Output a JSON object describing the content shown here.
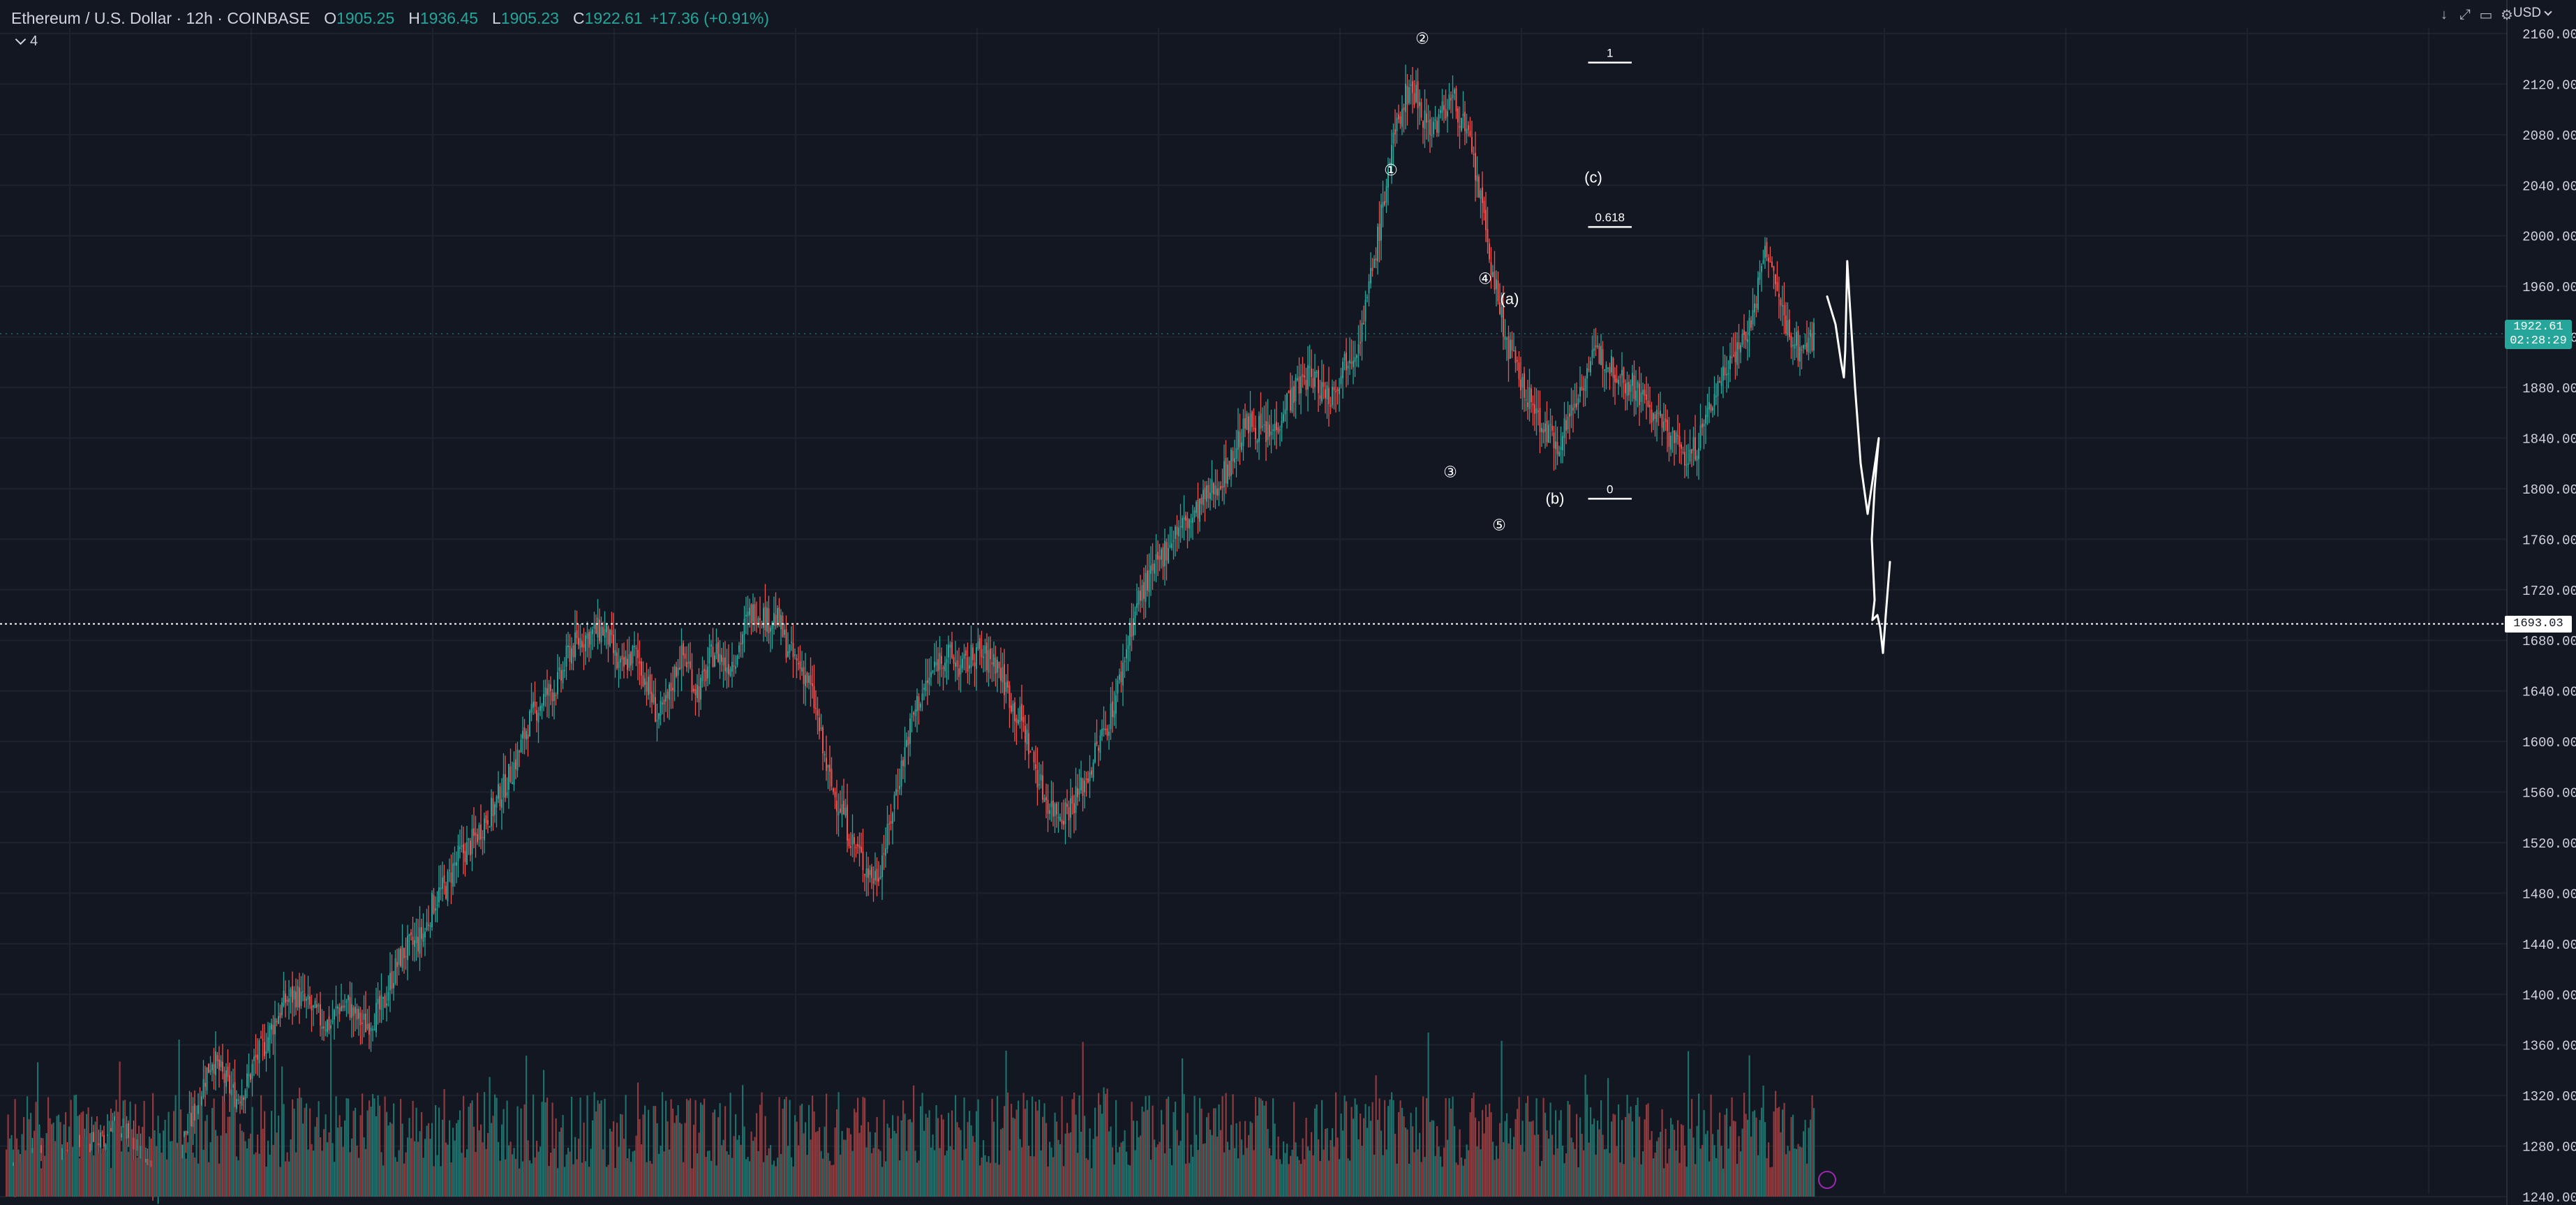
{
  "header": {
    "symbol": "Ethereum / U.S. Dollar · 12h · COINBASE",
    "open_label": "O",
    "open_value": "1905.25",
    "high_label": "H",
    "high_value": "1936.45",
    "low_label": "L",
    "low_value": "1905.23",
    "close_label": "C",
    "close_value": "1922.61",
    "change": "+17.36 (+0.91%)"
  },
  "indicator_toggle": {
    "label": "4"
  },
  "currency": "USD",
  "toolbar_icons": [
    "download-icon",
    "fullscreen-icon",
    "screenshot-icon",
    "settings-icon"
  ],
  "last_price": {
    "price": "1922.61",
    "countdown": "02:28:29"
  },
  "horizontal_level": {
    "price": 1693.03,
    "label": "1693.03"
  },
  "colors": {
    "background": "#131722",
    "up": "#26a69a",
    "down": "#ef5350",
    "volume_up": "#1f6f6a",
    "volume_down": "#8f3a3c",
    "text": "#d1d4dc",
    "grid": "#1e222d",
    "annotation": "#ffffff"
  },
  "chart_data": {
    "type": "candlestick",
    "interval": "12h",
    "title": "Ethereum / U.S. Dollar · 12h · COINBASE",
    "ylim": [
      1220,
      2170
    ],
    "y_ticks": [
      2160,
      2120,
      2080,
      2040,
      2000,
      1960,
      1920,
      1880,
      1840,
      1800,
      1760,
      1720,
      1680,
      1640,
      1600,
      1560,
      1520,
      1480,
      1440,
      1400,
      1360,
      1320,
      1280,
      1240
    ],
    "grid": true,
    "close_path": [
      [
        0,
        1260
      ],
      [
        6,
        1265
      ],
      [
        12,
        1262
      ],
      [
        18,
        1275
      ],
      [
        24,
        1270
      ],
      [
        30,
        1268
      ],
      [
        36,
        1280
      ],
      [
        40,
        1285
      ],
      [
        44,
        1275
      ],
      [
        50,
        1290
      ],
      [
        56,
        1280
      ],
      [
        60,
        1300
      ],
      [
        66,
        1295
      ],
      [
        70,
        1285
      ],
      [
        76,
        1275
      ],
      [
        80,
        1268
      ],
      [
        84,
        1262
      ],
      [
        90,
        1264
      ],
      [
        96,
        1270
      ],
      [
        100,
        1280
      ],
      [
        106,
        1300
      ],
      [
        110,
        1315
      ],
      [
        114,
        1335
      ],
      [
        118,
        1350
      ],
      [
        122,
        1340
      ],
      [
        128,
        1325
      ],
      [
        132,
        1318
      ],
      [
        138,
        1330
      ],
      [
        142,
        1346
      ],
      [
        148,
        1360
      ],
      [
        154,
        1380
      ],
      [
        160,
        1395
      ],
      [
        166,
        1400
      ],
      [
        172,
        1392
      ],
      [
        180,
        1380
      ],
      [
        186,
        1376
      ],
      [
        190,
        1390
      ],
      [
        196,
        1392
      ],
      [
        200,
        1382
      ],
      [
        206,
        1376
      ],
      [
        210,
        1382
      ],
      [
        216,
        1390
      ],
      [
        220,
        1410
      ],
      [
        226,
        1430
      ],
      [
        230,
        1436
      ],
      [
        236,
        1442
      ],
      [
        240,
        1450
      ],
      [
        244,
        1470
      ],
      [
        248,
        1480
      ],
      [
        252,
        1485
      ],
      [
        256,
        1500
      ],
      [
        260,
        1510
      ],
      [
        264,
        1515
      ],
      [
        268,
        1522
      ],
      [
        272,
        1532
      ],
      [
        276,
        1542
      ],
      [
        280,
        1548
      ],
      [
        282,
        1556
      ],
      [
        286,
        1566
      ],
      [
        290,
        1578
      ],
      [
        294,
        1592
      ],
      [
        298,
        1610
      ],
      [
        302,
        1622
      ],
      [
        306,
        1630
      ],
      [
        310,
        1638
      ],
      [
        314,
        1642
      ],
      [
        318,
        1650
      ],
      [
        320,
        1660
      ],
      [
        322,
        1670
      ],
      [
        326,
        1676
      ],
      [
        330,
        1682
      ],
      [
        334,
        1684
      ],
      [
        338,
        1687
      ],
      [
        342,
        1688
      ],
      [
        345,
        1682
      ],
      [
        348,
        1670
      ],
      [
        350,
        1660
      ],
      [
        353,
        1656
      ],
      [
        356,
        1664
      ],
      [
        360,
        1670
      ],
      [
        363,
        1662
      ],
      [
        366,
        1650
      ],
      [
        370,
        1634
      ],
      [
        373,
        1620
      ],
      [
        376,
        1622
      ],
      [
        379,
        1632
      ],
      [
        382,
        1648
      ],
      [
        385,
        1664
      ],
      [
        388,
        1668
      ],
      [
        391,
        1660
      ],
      [
        394,
        1645
      ],
      [
        397,
        1640
      ],
      [
        400,
        1650
      ],
      [
        403,
        1664
      ],
      [
        406,
        1672
      ],
      [
        409,
        1668
      ],
      [
        412,
        1660
      ],
      [
        416,
        1664
      ],
      [
        420,
        1676
      ],
      [
        423,
        1690
      ],
      [
        426,
        1700
      ],
      [
        430,
        1704
      ],
      [
        433,
        1702
      ],
      [
        436,
        1696
      ],
      [
        440,
        1698
      ],
      [
        443,
        1694
      ],
      [
        446,
        1680
      ],
      [
        450,
        1668
      ],
      [
        453,
        1662
      ],
      [
        456,
        1658
      ],
      [
        460,
        1646
      ],
      [
        463,
        1630
      ],
      [
        466,
        1610
      ],
      [
        468,
        1592
      ],
      [
        471,
        1574
      ],
      [
        474,
        1560
      ],
      [
        477,
        1552
      ],
      [
        480,
        1544
      ],
      [
        482,
        1532
      ],
      [
        485,
        1520
      ],
      [
        488,
        1514
      ],
      [
        491,
        1504
      ],
      [
        494,
        1498
      ],
      [
        497,
        1492
      ],
      [
        500,
        1498
      ],
      [
        502,
        1510
      ],
      [
        505,
        1524
      ],
      [
        507,
        1540
      ],
      [
        510,
        1562
      ],
      [
        513,
        1580
      ],
      [
        516,
        1600
      ],
      [
        519,
        1616
      ],
      [
        522,
        1630
      ],
      [
        525,
        1638
      ],
      [
        528,
        1646
      ],
      [
        531,
        1656
      ],
      [
        534,
        1664
      ],
      [
        537,
        1668
      ],
      [
        540,
        1668
      ],
      [
        543,
        1664
      ],
      [
        546,
        1658
      ],
      [
        550,
        1660
      ],
      [
        553,
        1666
      ],
      [
        556,
        1672
      ],
      [
        559,
        1668
      ],
      [
        563,
        1664
      ],
      [
        566,
        1666
      ],
      [
        569,
        1658
      ],
      [
        572,
        1646
      ],
      [
        575,
        1636
      ],
      [
        578,
        1624
      ],
      [
        582,
        1616
      ],
      [
        585,
        1602
      ],
      [
        588,
        1588
      ],
      [
        591,
        1574
      ],
      [
        594,
        1560
      ],
      [
        598,
        1550
      ],
      [
        601,
        1546
      ],
      [
        605,
        1544
      ],
      [
        609,
        1548
      ],
      [
        612,
        1554
      ],
      [
        615,
        1560
      ],
      [
        620,
        1574
      ],
      [
        624,
        1590
      ],
      [
        628,
        1604
      ],
      [
        632,
        1618
      ],
      [
        636,
        1636
      ],
      [
        640,
        1660
      ],
      [
        644,
        1688
      ],
      [
        648,
        1708
      ],
      [
        652,
        1722
      ],
      [
        656,
        1730
      ],
      [
        660,
        1740
      ],
      [
        665,
        1754
      ],
      [
        670,
        1766
      ],
      [
        675,
        1772
      ],
      [
        680,
        1776
      ],
      [
        685,
        1788
      ],
      [
        690,
        1796
      ],
      [
        694,
        1804
      ],
      [
        698,
        1812
      ],
      [
        702,
        1822
      ],
      [
        706,
        1838
      ],
      [
        710,
        1848
      ],
      [
        714,
        1852
      ],
      [
        719,
        1846
      ],
      [
        724,
        1842
      ],
      [
        728,
        1850
      ],
      [
        733,
        1868
      ],
      [
        738,
        1876
      ],
      [
        742,
        1884
      ],
      [
        746,
        1890
      ],
      [
        750,
        1886
      ],
      [
        755,
        1878
      ],
      [
        759,
        1874
      ],
      [
        764,
        1890
      ],
      [
        768,
        1904
      ],
      [
        773,
        1912
      ],
      [
        777,
        1928
      ],
      [
        781,
        1958
      ],
      [
        785,
        1990
      ],
      [
        789,
        2022
      ],
      [
        792,
        2054
      ],
      [
        796,
        2080
      ],
      [
        800,
        2102
      ],
      [
        804,
        2118
      ],
      [
        808,
        2112
      ],
      [
        812,
        2096
      ],
      [
        816,
        2086
      ],
      [
        820,
        2090
      ],
      [
        824,
        2100
      ],
      [
        828,
        2110
      ],
      [
        832,
        2100
      ],
      [
        836,
        2084
      ],
      [
        840,
        2064
      ],
      [
        844,
        2036
      ],
      [
        848,
        2002
      ],
      [
        852,
        1970
      ],
      [
        856,
        1940
      ],
      [
        860,
        1916
      ],
      [
        864,
        1900
      ],
      [
        868,
        1884
      ],
      [
        872,
        1872
      ],
      [
        876,
        1862
      ],
      [
        880,
        1852
      ],
      [
        884,
        1842
      ],
      [
        888,
        1836
      ],
      [
        892,
        1844
      ],
      [
        896,
        1858
      ],
      [
        900,
        1872
      ],
      [
        904,
        1888
      ],
      [
        908,
        1900
      ],
      [
        912,
        1906
      ],
      [
        916,
        1904
      ],
      [
        920,
        1898
      ],
      [
        924,
        1892
      ],
      [
        928,
        1886
      ],
      [
        932,
        1882
      ],
      [
        936,
        1876
      ],
      [
        940,
        1868
      ],
      [
        944,
        1858
      ],
      [
        948,
        1852
      ],
      [
        952,
        1846
      ],
      [
        956,
        1838
      ],
      [
        960,
        1830
      ],
      [
        964,
        1824
      ],
      [
        968,
        1832
      ],
      [
        972,
        1846
      ],
      [
        976,
        1862
      ],
      [
        980,
        1878
      ],
      [
        984,
        1892
      ],
      [
        988,
        1904
      ],
      [
        992,
        1912
      ],
      [
        996,
        1920
      ],
      [
        1000,
        1932
      ],
      [
        1003,
        1950
      ],
      [
        1006,
        1974
      ],
      [
        1009,
        1990
      ],
      [
        1012,
        1972
      ],
      [
        1016,
        1948
      ],
      [
        1020,
        1930
      ],
      [
        1024,
        1918
      ],
      [
        1028,
        1910
      ],
      [
        1032,
        1914
      ],
      [
        1036,
        1922
      ]
    ],
    "annotations": [
      {
        "text": "②",
        "price": 2152,
        "idx": 812
      },
      {
        "text": "①",
        "price": 2048,
        "idx": 794
      },
      {
        "text": "③",
        "price": 1809,
        "idx": 828
      },
      {
        "text": "④",
        "price": 1962,
        "idx": 848
      },
      {
        "text": "⑤",
        "price": 1767,
        "idx": 856
      },
      {
        "text": "(a)",
        "price": 1946,
        "idx": 862
      },
      {
        "text": "(b)",
        "price": 1788,
        "idx": 888
      },
      {
        "text": "(c)",
        "price": 2042,
        "idx": 910
      }
    ],
    "fib_levels": [
      {
        "label": "1",
        "price": 2137
      },
      {
        "label": "0.618",
        "price": 2007
      },
      {
        "label": "0",
        "price": 1792
      }
    ],
    "projection_path": [
      [
        0,
        1952
      ],
      [
        0.3,
        1930
      ],
      [
        0.5,
        1900
      ],
      [
        0.6,
        1888
      ],
      [
        0.65,
        1910
      ],
      [
        0.7,
        1960
      ],
      [
        0.72,
        1980
      ],
      [
        0.8,
        1950
      ],
      [
        1.0,
        1880
      ],
      [
        1.2,
        1820
      ],
      [
        1.45,
        1780
      ],
      [
        1.65,
        1810
      ],
      [
        1.85,
        1840
      ],
      [
        1.7,
        1800
      ],
      [
        1.6,
        1760
      ],
      [
        1.7,
        1712
      ],
      [
        1.62,
        1696
      ],
      [
        1.8,
        1700
      ],
      [
        1.9,
        1690
      ],
      [
        2.0,
        1670
      ],
      [
        2.1,
        1700
      ],
      [
        2.25,
        1742
      ]
    ]
  }
}
